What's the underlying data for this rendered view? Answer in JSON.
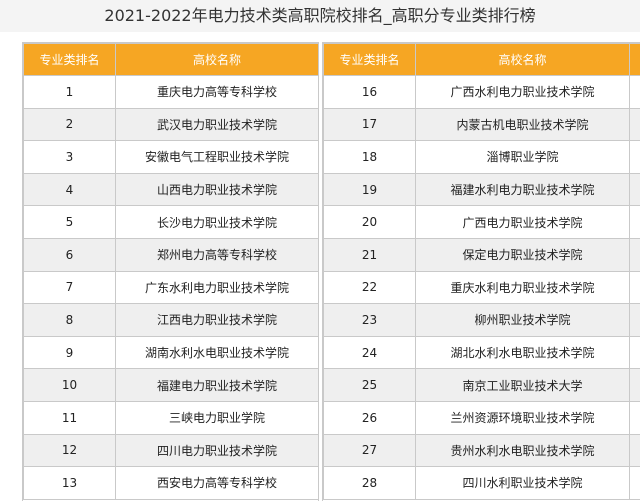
{
  "title": "2021-2022年电力技术类高职院校排名_高职分专业类排行榜",
  "headers": {
    "rank": "专业类排名",
    "school": "高校名称"
  },
  "left_rows": [
    {
      "rank": "1",
      "school": "重庆电力高等专科学校"
    },
    {
      "rank": "2",
      "school": "武汉电力职业技术学院"
    },
    {
      "rank": "3",
      "school": "安徽电气工程职业技术学院"
    },
    {
      "rank": "4",
      "school": "山西电力职业技术学院"
    },
    {
      "rank": "5",
      "school": "长沙电力职业技术学院"
    },
    {
      "rank": "6",
      "school": "郑州电力高等专科学校"
    },
    {
      "rank": "7",
      "school": "广东水利电力职业技术学院"
    },
    {
      "rank": "8",
      "school": "江西电力职业技术学院"
    },
    {
      "rank": "9",
      "school": "湖南水利水电职业技术学院"
    },
    {
      "rank": "10",
      "school": "福建电力职业技术学院"
    },
    {
      "rank": "11",
      "school": "三峡电力职业学院"
    },
    {
      "rank": "12",
      "school": "四川电力职业技术学院"
    },
    {
      "rank": "13",
      "school": "西安电力高等专科学校"
    }
  ],
  "right_rows": [
    {
      "rank": "16",
      "school": "广西水利电力职业技术学院"
    },
    {
      "rank": "17",
      "school": "内蒙古机电职业技术学院"
    },
    {
      "rank": "18",
      "school": "淄博职业学院"
    },
    {
      "rank": "19",
      "school": "福建水利电力职业技术学院"
    },
    {
      "rank": "20",
      "school": "广西电力职业技术学院"
    },
    {
      "rank": "21",
      "school": "保定电力职业技术学院"
    },
    {
      "rank": "22",
      "school": "重庆水利电力职业技术学院"
    },
    {
      "rank": "23",
      "school": "柳州职业技术学院"
    },
    {
      "rank": "24",
      "school": "湖北水利水电职业技术学院"
    },
    {
      "rank": "25",
      "school": "南京工业职业技术大学"
    },
    {
      "rank": "26",
      "school": "兰州资源环境职业技术学院"
    },
    {
      "rank": "27",
      "school": "贵州水利水电职业技术学院"
    },
    {
      "rank": "28",
      "school": "四川水利职业技术学院"
    }
  ],
  "colors": {
    "header_bg": "#f6a623",
    "stripe_bg": "#efefef",
    "border": "#c9c9c9"
  }
}
